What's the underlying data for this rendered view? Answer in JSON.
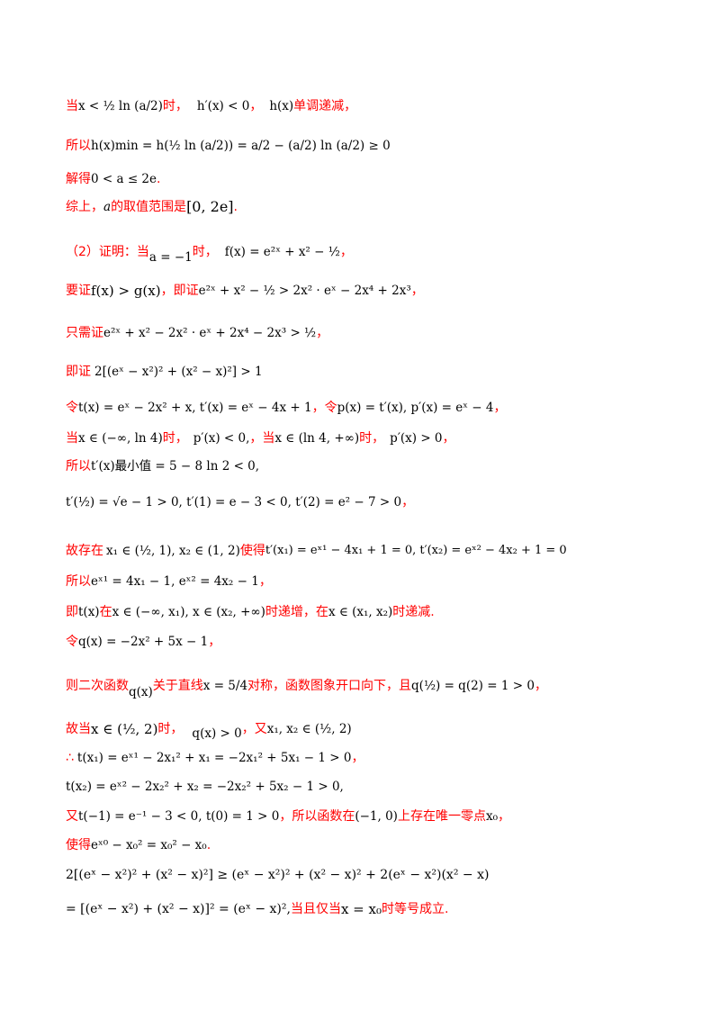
{
  "lines": [
    {
      "text": "当",
      "math": "x < ½ ln (a/2)",
      "text2": "时，",
      "math2": "h′(x) < 0",
      "text3": "，",
      "math3": "h(x)",
      "text4": "单调递减，"
    },
    {
      "text": "所以",
      "math": "h(x)min = h(½ ln (a/2)) = a/2 − (a/2) ln (a/2) ≥ 0"
    },
    {
      "text": "解得",
      "math": "0 < a ≤ 2e",
      "text2": "."
    },
    {
      "text": "综上，",
      "math": "a",
      "text2": "的取值范围是",
      "math2": "[0, 2e]",
      "text3": "."
    },
    {
      "text": "（2）证明：当",
      "math": "a = −1",
      "text2": "时，",
      "math2": "f(x) = e²ˣ + x² − ½",
      "text3": "，"
    },
    {
      "text": "要证",
      "math": "f(x) > g(x)",
      "text2": "，即证",
      "math2": "e²ˣ + x² − ½ > 2x² · eˣ − 2x⁴ + 2x³",
      "text3": "，"
    },
    {
      "text": "只需证",
      "math": "e²ˣ + x² − 2x² · eˣ + 2x⁴ − 2x³ > ½",
      "text2": "，"
    },
    {
      "text": "即证",
      "math": "2[(eˣ − x²)² + (x² − x)²] > 1"
    },
    {
      "text": "令",
      "math": "t(x) = eˣ − 2x² + x, t′(x) = eˣ − 4x + 1",
      "text2": "，令",
      "math2": "p(x) = t′(x), p′(x) = eˣ − 4",
      "text3": "，"
    },
    {
      "text": "当",
      "math": "x ∈ (−∞, ln 4)",
      "text2": "时，",
      "math2": "p′(x) < 0,",
      "text3": "，当",
      "math3": "x ∈ (ln 4, +∞)",
      "text4": "时，",
      "math4": "p′(x) > 0",
      "text5": "，"
    },
    {
      "text": "所以",
      "math": "t′(x)最小值 = 5 − 8 ln 2 < 0,"
    },
    {
      "text": "",
      "math": "t′(½) = √e − 1 > 0, t′(1) = e − 3 < 0, t′(2) = e² − 7 > 0",
      "text2": "，"
    },
    {
      "text": "故存在",
      "math": "x₁ ∈ (½, 1), x₂ ∈ (1, 2)",
      "text2": "使得",
      "math2": "t′(x₁) = eˣ¹ − 4x₁ + 1 = 0, t′(x₂) = eˣ² − 4x₂ + 1 = 0"
    },
    {
      "text": "所以",
      "math": "eˣ¹ = 4x₁ − 1, eˣ² = 4x₂ − 1",
      "text2": "，"
    },
    {
      "text": "即",
      "math": "t(x)",
      "text2": "在",
      "math2": "x ∈ (−∞, x₁), x ∈ (x₂, +∞)",
      "text3": "时递增，在",
      "math3": "x ∈ (x₁, x₂)",
      "text4": "时递减."
    },
    {
      "text": "令",
      "math": "q(x) = −2x² + 5x − 1",
      "text2": "，"
    },
    {
      "text": "则二次函数",
      "math": "q(x)",
      "text2": "关于直线",
      "math2": "x = 5/4",
      "text3": "对称，函数图象开口向下，且",
      "math3": "q(½) = q(2) = 1 > 0",
      "text4": "，"
    },
    {
      "text": "故当",
      "math": "x ∈ (½, 2)",
      "text2": "时，",
      "math2": "q(x) > 0",
      "text3": "，又",
      "math3": "x₁, x₂ ∈ (½, 2)"
    },
    {
      "text": "∴",
      "math": "t(x₁) = eˣ¹ − 2x₁² + x₁ = −2x₁² + 5x₁ − 1 > 0",
      "text2": "，"
    },
    {
      "text": "",
      "math": "t(x₂) = eˣ² − 2x₂² + x₂ = −2x₂² + 5x₂ − 1 > 0,"
    },
    {
      "text": "又",
      "math": "t(−1) = e⁻¹ − 3 < 0, t(0) = 1 > 0",
      "text2": "，所以函数在",
      "math2": "(−1, 0)",
      "text3": "上存在唯一零点",
      "math3": "x₀",
      "text4": "，"
    },
    {
      "text": "使得",
      "math": "eˣ⁰ − x₀² = x₀² − x₀",
      "text2": "."
    },
    {
      "text": "",
      "math": "2[(eˣ − x²)² + (x² − x)²] ≥ (eˣ − x²)² + (x² − x)² + 2(eˣ − x²)(x² − x)"
    },
    {
      "text": "",
      "math": "= [(eˣ − x²) + (x² − x)]² = (eˣ − x)²,",
      "text2": "当且仅当",
      "math2": "x = x₀",
      "text3": "时等号成立."
    }
  ]
}
